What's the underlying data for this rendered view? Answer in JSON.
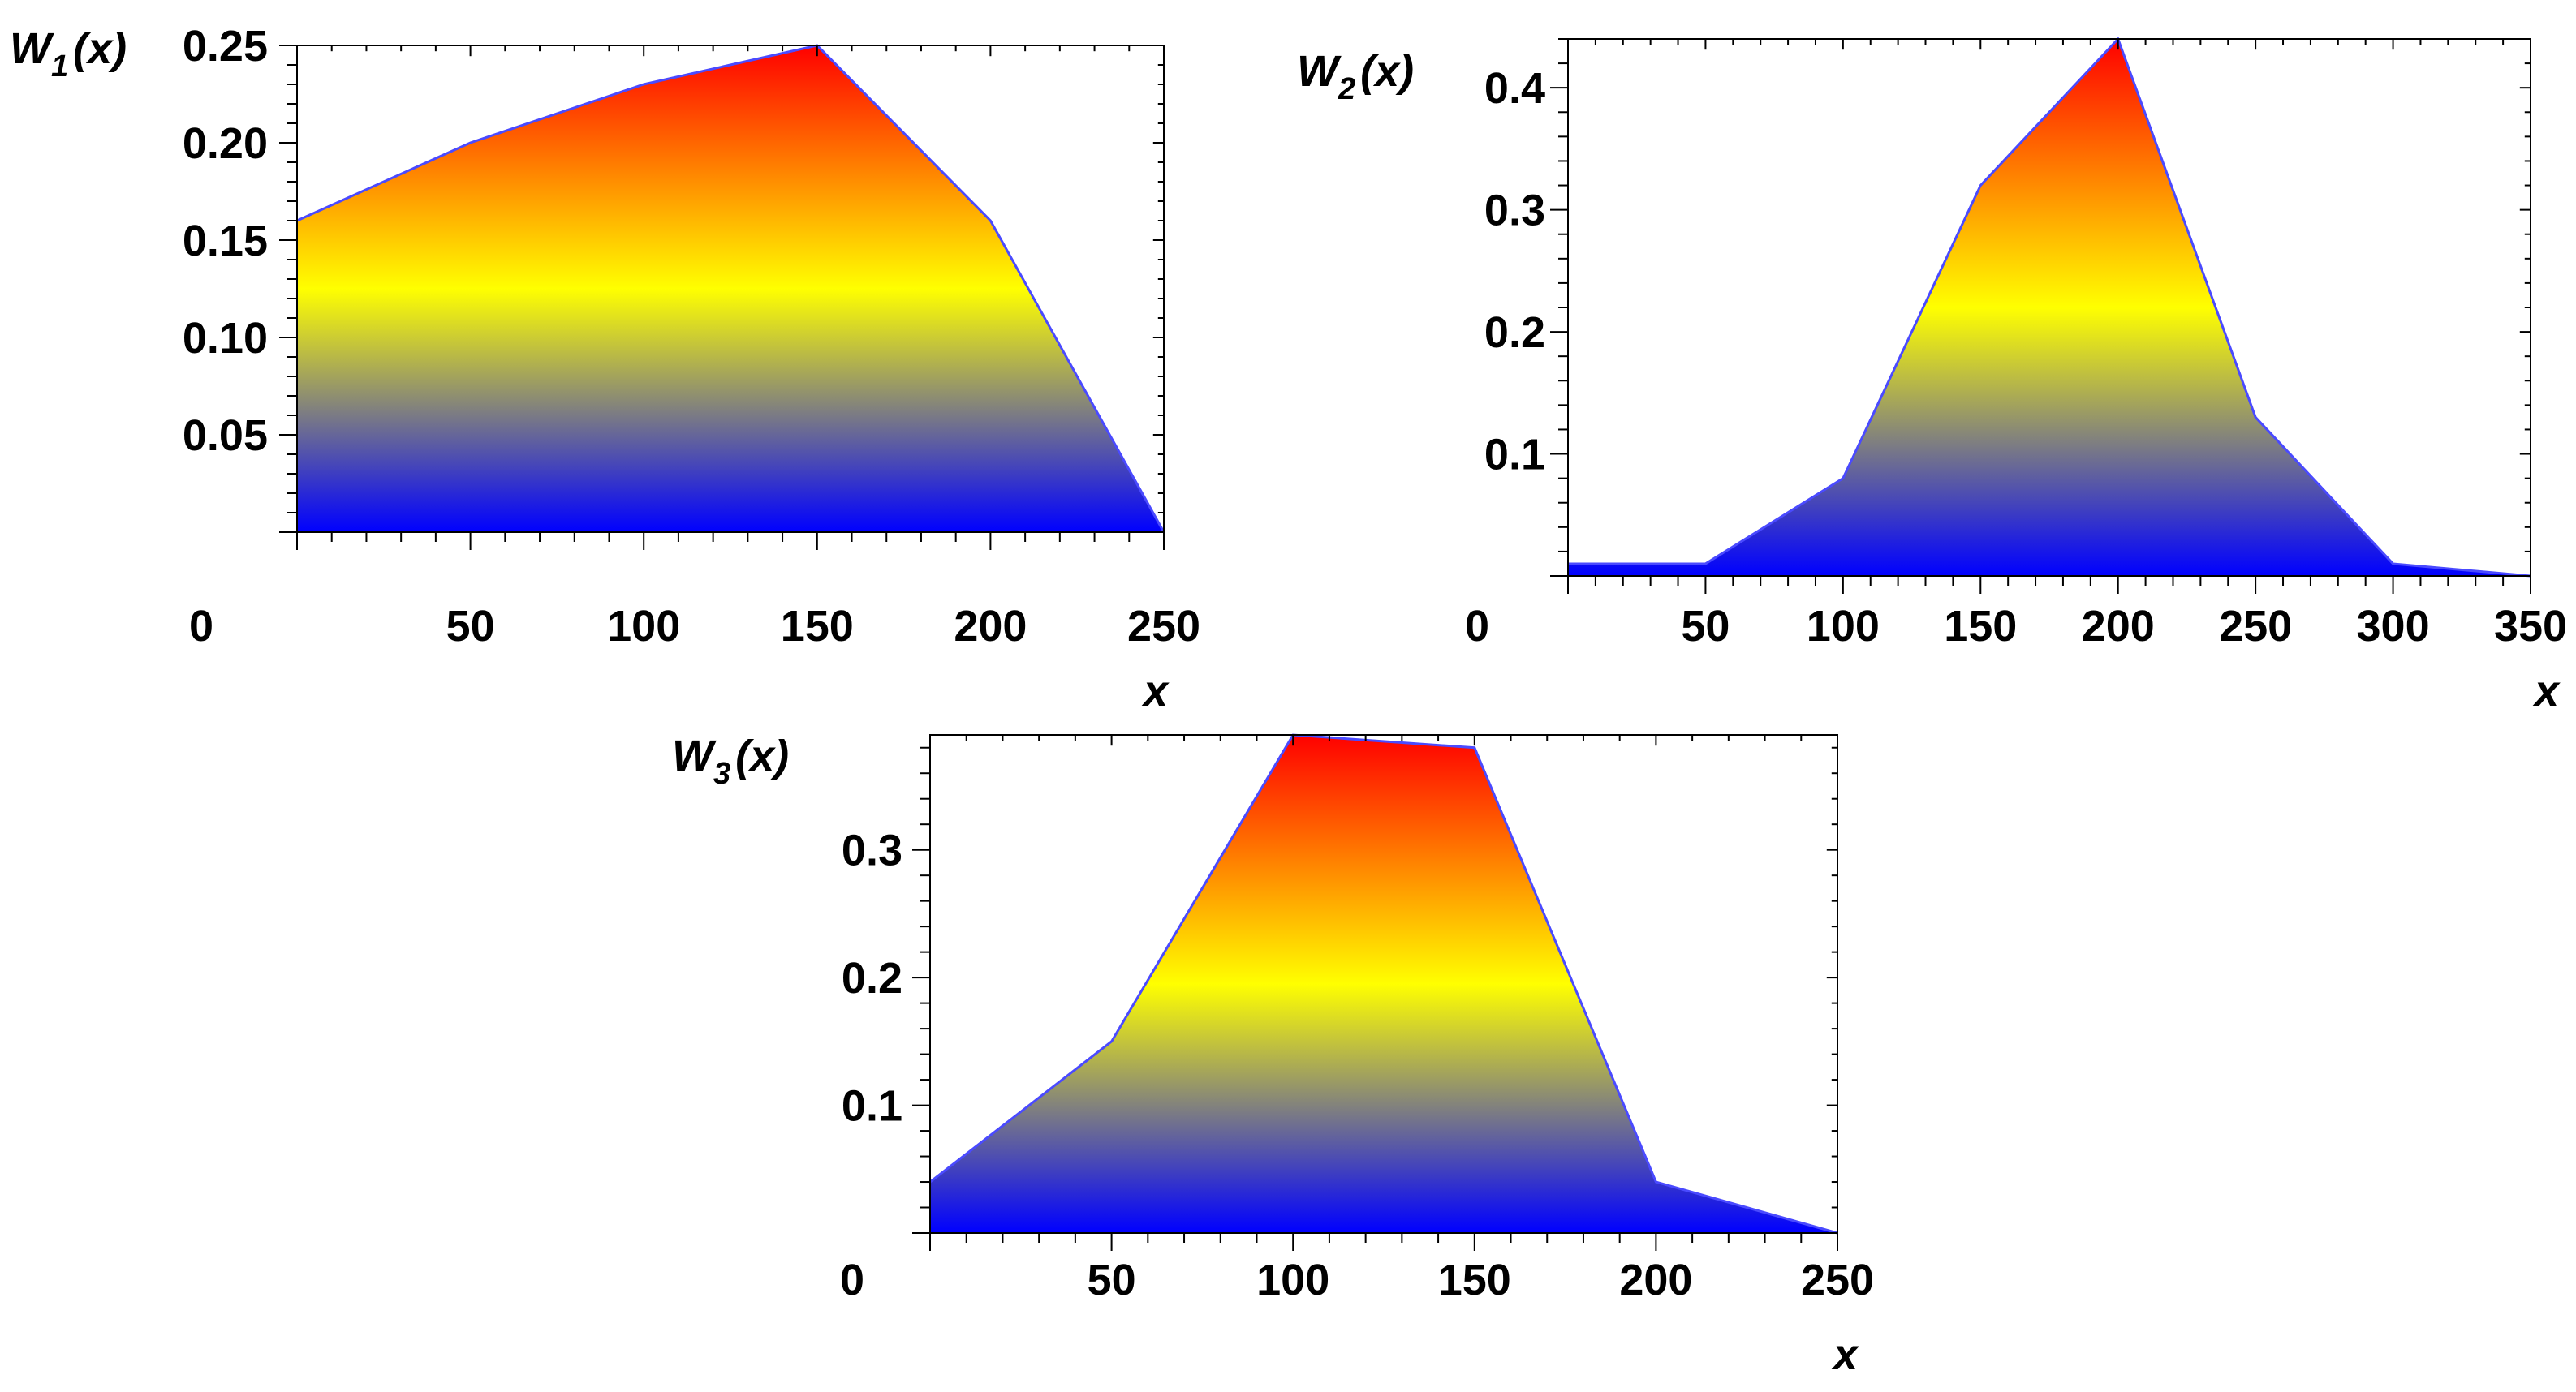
{
  "chart_data": [
    {
      "type": "area",
      "ylabel_main": "W",
      "ylabel_sub": "1",
      "ylabel_arg": "(x)",
      "xlabel": "x",
      "x": [
        0,
        50,
        100,
        150,
        200,
        250
      ],
      "y": [
        0.16,
        0.2,
        0.23,
        0.25,
        0.16,
        0.0
      ],
      "xlim": [
        0,
        250
      ],
      "ylim": [
        0,
        0.25
      ],
      "xticks": [
        0,
        50,
        100,
        150,
        200,
        250
      ],
      "xtick_labels": [
        "0",
        "50",
        "100",
        "150",
        "200",
        "250"
      ],
      "yticks": [
        0.05,
        0.1,
        0.15,
        0.2,
        0.25
      ],
      "ytick_labels": [
        "0.05",
        "0.10",
        "0.15",
        "0.20",
        "0.25"
      ],
      "fill_gradient": [
        "#0000ff",
        "#ffff00",
        "#ff0000"
      ]
    },
    {
      "type": "area",
      "ylabel_main": "W",
      "ylabel_sub": "2",
      "ylabel_arg": "(x)",
      "xlabel": "x",
      "x": [
        0,
        50,
        100,
        150,
        200,
        250,
        300,
        350
      ],
      "y": [
        0.01,
        0.01,
        0.08,
        0.32,
        0.44,
        0.13,
        0.01,
        0.0
      ],
      "xlim": [
        0,
        350
      ],
      "ylim": [
        0,
        0.44
      ],
      "xticks": [
        0,
        50,
        100,
        150,
        200,
        250,
        300,
        350
      ],
      "xtick_labels": [
        "0",
        "50",
        "100",
        "150",
        "200",
        "250",
        "300",
        "350"
      ],
      "yticks": [
        0.1,
        0.2,
        0.3,
        0.4
      ],
      "ytick_labels": [
        "0.1",
        "0.2",
        "0.3",
        "0.4"
      ],
      "fill_gradient": [
        "#0000ff",
        "#ffff00",
        "#ff0000"
      ]
    },
    {
      "type": "area",
      "ylabel_main": "W",
      "ylabel_sub": "3",
      "ylabel_arg": "(x)",
      "xlabel": "x",
      "x": [
        0,
        50,
        100,
        150,
        200,
        250
      ],
      "y": [
        0.04,
        0.15,
        0.39,
        0.38,
        0.04,
        0.0
      ],
      "xlim": [
        0,
        250
      ],
      "ylim": [
        0,
        0.39
      ],
      "xticks": [
        0,
        50,
        100,
        150,
        200,
        250
      ],
      "xtick_labels": [
        "0",
        "50",
        "100",
        "150",
        "200",
        "250"
      ],
      "yticks": [
        0.1,
        0.2,
        0.3
      ],
      "ytick_labels": [
        "0.1",
        "0.2",
        "0.3"
      ],
      "fill_gradient": [
        "#0000ff",
        "#ffff00",
        "#ff0000"
      ]
    }
  ]
}
